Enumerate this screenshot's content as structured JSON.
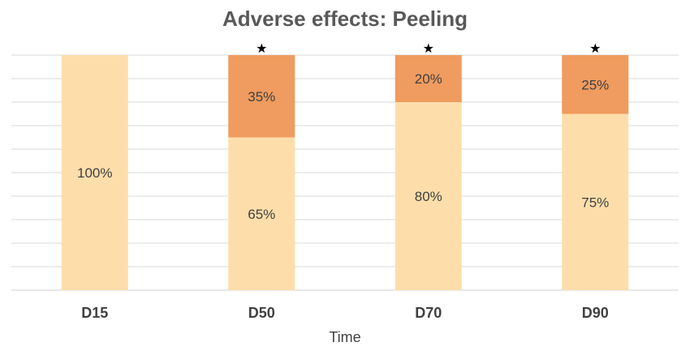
{
  "chart_data": {
    "type": "bar",
    "stacked": true,
    "title": "Adverse effects: Peeling",
    "xlabel": "Time",
    "ylabel": "",
    "categories": [
      "D15",
      "D50",
      "D70",
      "D90"
    ],
    "series": [
      {
        "values": [
          100,
          65,
          80,
          75
        ],
        "labels": [
          "100%",
          "65%",
          "80%",
          "75%"
        ],
        "color": "#FDDEAB"
      },
      {
        "values": [
          0,
          35,
          20,
          25
        ],
        "labels": [
          "",
          "35%",
          "20%",
          "25%"
        ],
        "color": "#F09B5F"
      }
    ],
    "markers": [
      "",
      "★",
      "★",
      "★"
    ],
    "ylim": [
      0,
      100
    ],
    "grid": true,
    "legend": "none"
  }
}
